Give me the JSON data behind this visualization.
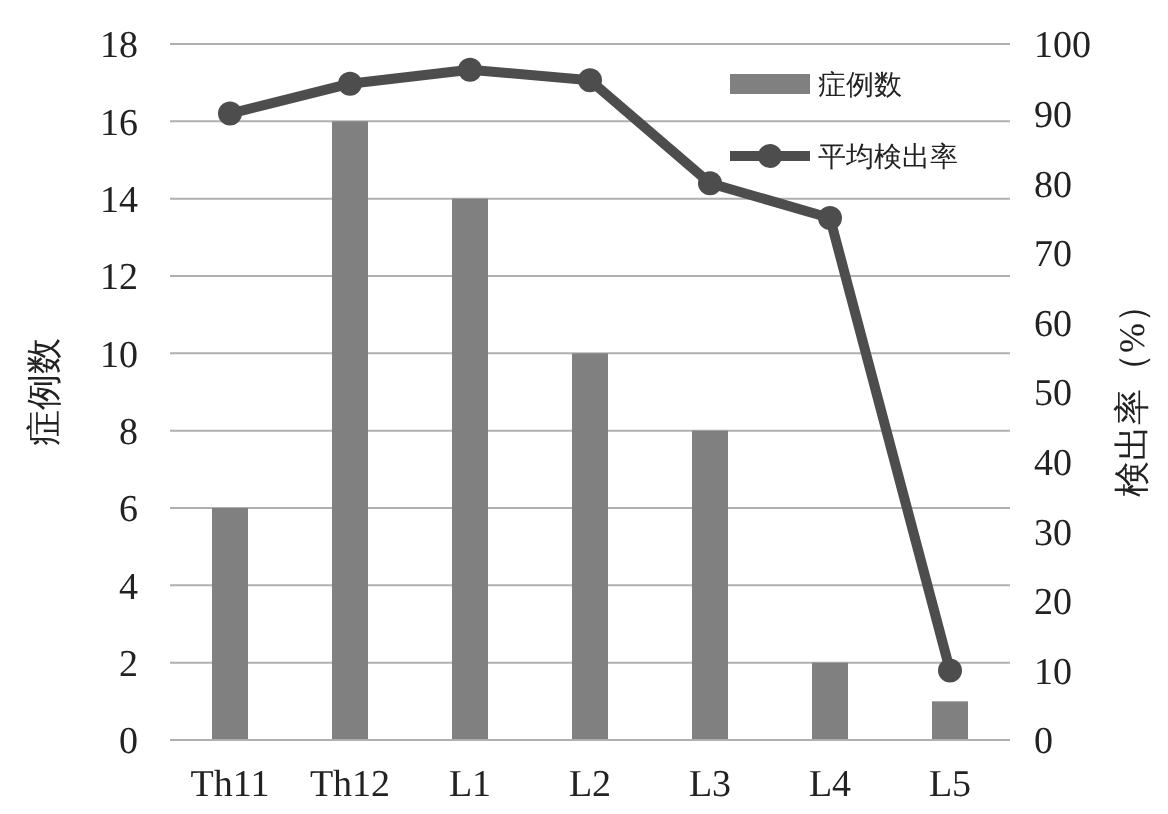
{
  "chart_data": {
    "type": "bar",
    "categories": [
      "Th11",
      "Th12",
      "L1",
      "L2",
      "L3",
      "L4",
      "L5"
    ],
    "ylabel": "症例数",
    "y2label": "検出率（%）",
    "series": [
      {
        "name": "症例数",
        "color": "#808080",
        "values": [
          6,
          16,
          14,
          10,
          8,
          2,
          1
        ]
      },
      {
        "name": "平均検出率",
        "type": "line",
        "axis": "y2",
        "color": "#4d4d4d",
        "marker": "circle",
        "values": [
          90,
          94.3,
          96.3,
          94.8,
          80,
          75,
          10
        ]
      }
    ],
    "ylim": [
      0,
      18
    ],
    "yticks": [
      0,
      2,
      4,
      6,
      8,
      10,
      12,
      14,
      16,
      18
    ],
    "y2lim": [
      0,
      100
    ],
    "y2ticks": [
      0,
      10,
      20,
      30,
      40,
      50,
      60,
      70,
      80,
      90,
      100
    ],
    "grid": "y",
    "legend": "top right"
  }
}
